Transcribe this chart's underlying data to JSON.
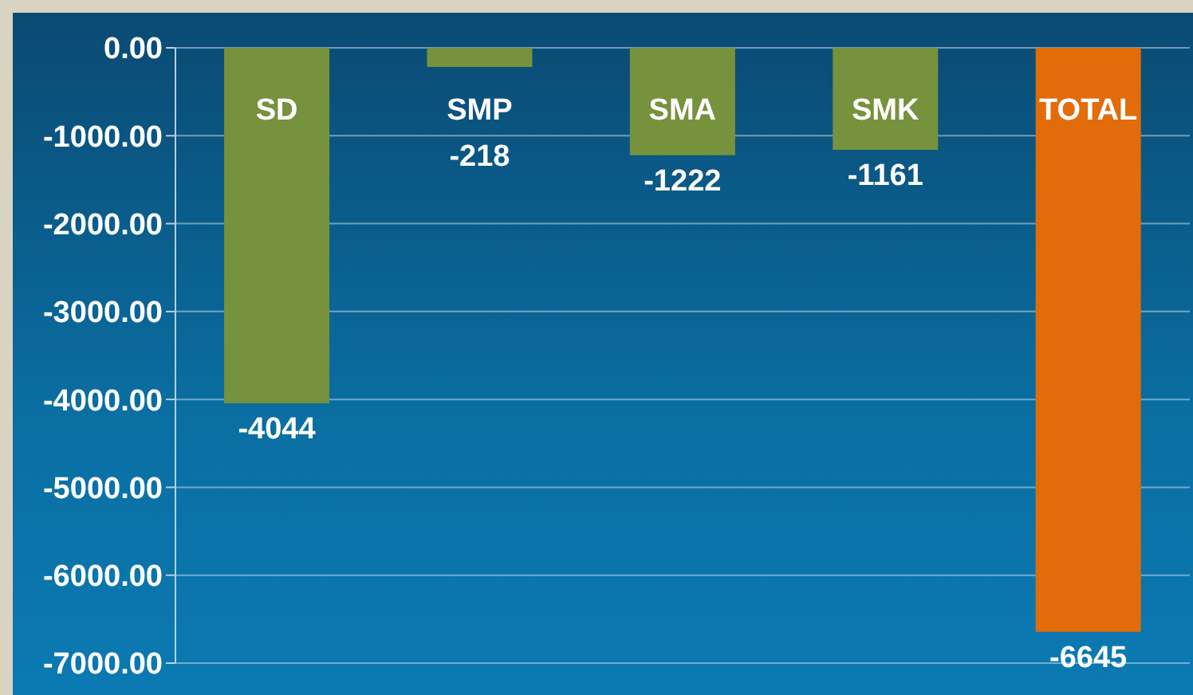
{
  "chart_data": {
    "type": "bar",
    "categories": [
      "SD",
      "SMP",
      "SMA",
      "SMK",
      "TOTAL"
    ],
    "values": [
      -4044,
      -218,
      -1222,
      -1161,
      -6645
    ],
    "colors": [
      "#76923c",
      "#76923c",
      "#76923c",
      "#76923c",
      "#e36c0a"
    ],
    "ylim": [
      -7000,
      0
    ],
    "yticks": [
      {
        "value": 0,
        "label": "0.00"
      },
      {
        "value": -1000,
        "label": "-1000.00"
      },
      {
        "value": -2000,
        "label": "-2000.00"
      },
      {
        "value": -3000,
        "label": "-3000.00"
      },
      {
        "value": -4000,
        "label": "-4000.00"
      },
      {
        "value": -5000,
        "label": "-5000.00"
      },
      {
        "value": -6000,
        "label": "-6000.00"
      },
      {
        "value": -7000,
        "label": "-7000.00"
      }
    ],
    "grid": "y",
    "data_labels": true
  }
}
